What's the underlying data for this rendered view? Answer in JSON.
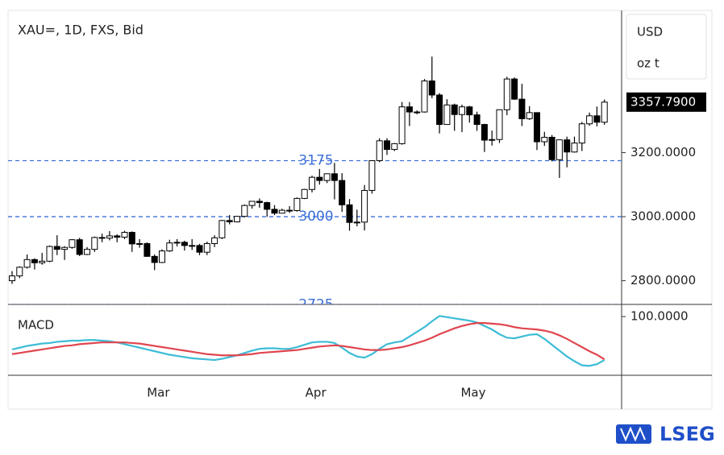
{
  "chart_data": [
    {
      "type": "candlestick",
      "title": "XAU=, 1D, FXS, Bid",
      "units": [
        "USD",
        "oz t"
      ],
      "categories": [
        null,
        null,
        null,
        null,
        null,
        null,
        null,
        null,
        null,
        null,
        null,
        null,
        null,
        null,
        null,
        null,
        null,
        null,
        null,
        null,
        "Mar",
        null,
        null,
        null,
        null,
        null,
        null,
        null,
        null,
        null,
        null,
        null,
        null,
        null,
        null,
        null,
        null,
        null,
        null,
        null,
        null,
        "Apr",
        null,
        null,
        null,
        null,
        null,
        null,
        null,
        null,
        null,
        null,
        null,
        null,
        null,
        null,
        null,
        null,
        null,
        null,
        null,
        null,
        "May",
        null,
        null,
        null,
        null,
        null,
        null,
        null,
        null,
        null,
        null,
        null,
        null,
        null,
        null,
        null,
        null
      ],
      "ohlc": [
        [
          2800,
          2830,
          2790,
          2815
        ],
        [
          2815,
          2845,
          2808,
          2842
        ],
        [
          2842,
          2882,
          2838,
          2866
        ],
        [
          2866,
          2870,
          2835,
          2856
        ],
        [
          2856,
          2887,
          2850,
          2861
        ],
        [
          2861,
          2910,
          2858,
          2907
        ],
        [
          2907,
          2942,
          2880,
          2898
        ],
        [
          2898,
          2908,
          2865,
          2904
        ],
        [
          2904,
          2930,
          2900,
          2928
        ],
        [
          2928,
          2934,
          2877,
          2882
        ],
        [
          2882,
          2905,
          2880,
          2898
        ],
        [
          2898,
          2938,
          2890,
          2935
        ],
        [
          2935,
          2947,
          2920,
          2933
        ],
        [
          2933,
          2955,
          2926,
          2940
        ],
        [
          2940,
          2945,
          2920,
          2936
        ],
        [
          2936,
          2956,
          2930,
          2951
        ],
        [
          2951,
          2954,
          2890,
          2915
        ],
        [
          2915,
          2930,
          2903,
          2916
        ],
        [
          2916,
          2920,
          2875,
          2876
        ],
        [
          2876,
          2882,
          2833,
          2857
        ],
        [
          2857,
          2898,
          2855,
          2893
        ],
        [
          2893,
          2928,
          2890,
          2918
        ],
        [
          2918,
          2930,
          2907,
          2920
        ],
        [
          2920,
          2925,
          2894,
          2910
        ],
        [
          2910,
          2930,
          2896,
          2910
        ],
        [
          2910,
          2915,
          2880,
          2889
        ],
        [
          2889,
          2922,
          2880,
          2916
        ],
        [
          2916,
          2942,
          2905,
          2934
        ],
        [
          2934,
          2990,
          2930,
          2988
        ],
        [
          2988,
          3005,
          2976,
          2984
        ],
        [
          2984,
          3002,
          2982,
          3001
        ],
        [
          3001,
          3038,
          2998,
          3035
        ],
        [
          3035,
          3048,
          3025,
          3048
        ],
        [
          3048,
          3057,
          3028,
          3044
        ],
        [
          3044,
          3047,
          3000,
          3023
        ],
        [
          3023,
          3036,
          3005,
          3011
        ],
        [
          3011,
          3025,
          3010,
          3020
        ],
        [
          3020,
          3033,
          3012,
          3019
        ],
        [
          3019,
          3060,
          3016,
          3057
        ],
        [
          3057,
          3087,
          3055,
          3085
        ],
        [
          3085,
          3128,
          3076,
          3123
        ],
        [
          3123,
          3149,
          3100,
          3113
        ],
        [
          3113,
          3135,
          3105,
          3134
        ],
        [
          3134,
          3168,
          3054,
          3113
        ],
        [
          3113,
          3136,
          3015,
          3037
        ],
        [
          3037,
          3055,
          2956,
          2982
        ],
        [
          2982,
          3022,
          2970,
          2983
        ],
        [
          2983,
          3099,
          2957,
          3082
        ],
        [
          3082,
          3176,
          3072,
          3175
        ],
        [
          3175,
          3245,
          3170,
          3237
        ],
        [
          3237,
          3245,
          3193,
          3210
        ],
        [
          3210,
          3230,
          3205,
          3228
        ],
        [
          3228,
          3358,
          3225,
          3343
        ],
        [
          3343,
          3358,
          3283,
          3327
        ],
        [
          3327,
          3332,
          3320,
          3327
        ],
        [
          3327,
          3430,
          3325,
          3424
        ],
        [
          3424,
          3500,
          3370,
          3380
        ],
        [
          3380,
          3386,
          3260,
          3288
        ],
        [
          3288,
          3367,
          3287,
          3349
        ],
        [
          3349,
          3353,
          3268,
          3319
        ],
        [
          3319,
          3350,
          3264,
          3343
        ],
        [
          3343,
          3346,
          3294,
          3318
        ],
        [
          3318,
          3328,
          3268,
          3288
        ],
        [
          3288,
          3290,
          3202,
          3239
        ],
        [
          3239,
          3269,
          3222,
          3241
        ],
        [
          3241,
          3335,
          3230,
          3334
        ],
        [
          3334,
          3437,
          3317,
          3430
        ],
        [
          3430,
          3435,
          3365,
          3367
        ],
        [
          3367,
          3415,
          3283,
          3306
        ],
        [
          3306,
          3345,
          3302,
          3325
        ],
        [
          3325,
          3326,
          3208,
          3234
        ],
        [
          3234,
          3265,
          3221,
          3248
        ],
        [
          3248,
          3255,
          3173,
          3178
        ],
        [
          3178,
          3240,
          3121,
          3240
        ],
        [
          3240,
          3250,
          3154,
          3202
        ],
        [
          3202,
          3250,
          3200,
          3230
        ],
        [
          3230,
          3296,
          3205,
          3290
        ],
        [
          3290,
          3325,
          3284,
          3315
        ],
        [
          3315,
          3344,
          3282,
          3295
        ],
        [
          3295,
          3366,
          3287,
          3357.79
        ]
      ],
      "up_color": "#ffffff",
      "down_color": "#000000",
      "ylim": [
        2726,
        3639
      ],
      "yticks": [
        {
          "value": 2800,
          "label": "2800.0000"
        },
        {
          "value": 3000,
          "label": "3000.0000"
        },
        {
          "value": 3200,
          "label": "3200.0000"
        }
      ],
      "last_price": {
        "value": 3357.79,
        "label": "3357.7900"
      },
      "levels": [
        3175,
        3000,
        2725
      ],
      "level_color": "#3a6fd8",
      "grid": false
    },
    {
      "type": "line",
      "title": "MACD",
      "series": [
        {
          "color": "#3dbcd6",
          "values": [
            44,
            47,
            50,
            52,
            54,
            55,
            57,
            58,
            59,
            59,
            60,
            60,
            59,
            58,
            56,
            53,
            50,
            47,
            44,
            41,
            38,
            35,
            33,
            31,
            29,
            28,
            27,
            26,
            28,
            31,
            34,
            38,
            42,
            45,
            46,
            46,
            45,
            45,
            48,
            52,
            56,
            57,
            57,
            55,
            47,
            38,
            32,
            30,
            36,
            45,
            53,
            56,
            58,
            66,
            74,
            82,
            92,
            101,
            99,
            97,
            95,
            93,
            90,
            84,
            78,
            70,
            64,
            63,
            66,
            69,
            70,
            62,
            52,
            42,
            32,
            24,
            17,
            16,
            19,
            26
          ]
        },
        {
          "color": "#e0454f",
          "values": [
            36,
            38,
            40,
            42,
            44,
            46,
            48,
            50,
            51,
            53,
            54,
            55,
            56,
            56,
            56,
            56,
            55,
            54,
            52,
            50,
            48,
            46,
            44,
            42,
            40,
            38,
            36,
            35,
            34,
            34,
            34,
            35,
            36,
            38,
            39,
            40,
            41,
            42,
            43,
            45,
            47,
            49,
            50,
            51,
            50,
            48,
            46,
            44,
            43,
            43,
            44,
            46,
            48,
            51,
            55,
            59,
            64,
            70,
            75,
            80,
            84,
            87,
            89,
            89,
            88,
            87,
            85,
            82,
            80,
            79,
            78,
            76,
            73,
            68,
            62,
            55,
            48,
            41,
            35,
            27
          ]
        }
      ],
      "ylim": [
        0,
        118
      ],
      "yticks": [
        {
          "value": 100,
          "label": "100.0000"
        }
      ]
    }
  ],
  "brand": "LSEG"
}
